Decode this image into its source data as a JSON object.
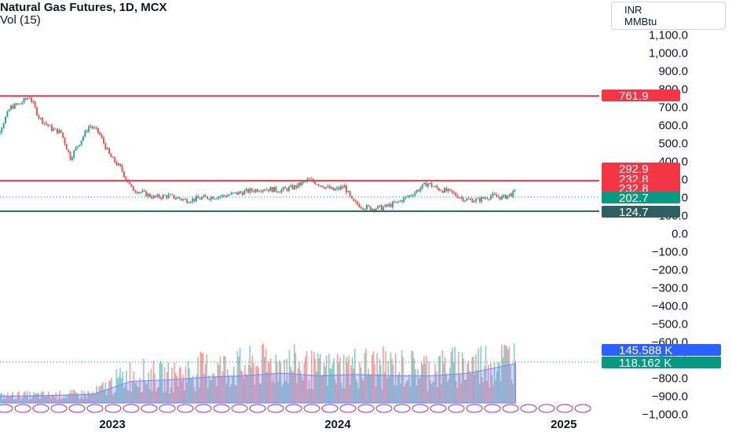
{
  "legend": {
    "title": "Natural Gas Futures, 1D, MCX",
    "indicator": "Vol (15)"
  },
  "units": {
    "currency": "INR",
    "unit": "MMBtu"
  },
  "colors": {
    "up": "#26a69a",
    "down": "#ef5350",
    "level_red": "#f23645",
    "level_dark": "#2f5f61",
    "price_teal": "#089981",
    "vol_blue": "#2962ff",
    "vol_ma": "#7b8ff5",
    "axis_text": "#131722",
    "grid": "#f0f3fa"
  },
  "chart_data": {
    "type": "candlestick",
    "title": "Natural Gas Futures, 1D, MCX",
    "xlabel": "",
    "ylabel": "",
    "ylim": [
      -1000,
      1150
    ],
    "yticks": [
      1100,
      1000,
      900,
      800,
      700,
      600,
      500,
      400,
      300,
      200,
      100,
      0,
      -100,
      -200,
      -300,
      -400,
      -500,
      -600,
      -700,
      -800,
      -900,
      -1000
    ],
    "ytick_labels": [
      "1,100.0",
      "1,000.0",
      "900.0",
      "800.0",
      "700.0",
      "600.0",
      "500.0",
      "400.0",
      "300.0",
      "200.0",
      "100.0",
      "0.0",
      "−100.0",
      "−200.0",
      "−300.0",
      "−400.0",
      "−500.0",
      "−600.0",
      "−700.0",
      "−800.0",
      "−900.0",
      "−1,000.0"
    ],
    "xticks": [
      "2023",
      "2024",
      "2025"
    ],
    "xtick_dates": [
      "2023-01-01",
      "2024-01-01",
      "2025-01-01"
    ],
    "xrange_dates": [
      "2022-06-12",
      "2025-04-01"
    ],
    "price_series": {
      "name": "Natural Gas Futures",
      "dates": [
        "2022-06-12",
        "2022-07-01",
        "2022-07-20",
        "2022-08-05",
        "2022-08-20",
        "2022-09-05",
        "2022-09-25",
        "2022-10-10",
        "2022-10-25",
        "2022-11-10",
        "2022-11-25",
        "2022-12-10",
        "2022-12-28",
        "2023-01-15",
        "2023-02-01",
        "2023-02-20",
        "2023-03-10",
        "2023-04-01",
        "2023-05-01",
        "2023-06-01",
        "2023-07-01",
        "2023-08-01",
        "2023-09-01",
        "2023-10-01",
        "2023-10-25",
        "2023-11-15",
        "2023-12-05",
        "2023-12-25",
        "2024-01-12",
        "2024-01-25",
        "2024-02-10",
        "2024-02-25",
        "2024-03-15",
        "2024-04-05",
        "2024-05-01",
        "2024-05-25",
        "2024-06-10",
        "2024-07-01",
        "2024-07-25",
        "2024-08-15",
        "2024-09-05",
        "2024-09-25",
        "2024-10-15"
      ],
      "close": [
        430,
        560,
        700,
        720,
        760,
        640,
        580,
        560,
        420,
        510,
        600,
        560,
        430,
        360,
        250,
        225,
        200,
        210,
        185,
        200,
        210,
        230,
        250,
        240,
        260,
        300,
        270,
        240,
        260,
        175,
        150,
        140,
        145,
        170,
        220,
        280,
        250,
        230,
        190,
        185,
        210,
        200,
        230
      ]
    },
    "volume_series": {
      "name": "Vol (15)",
      "axis_max": 1200,
      "dates": [
        "2022-06-12",
        "2022-08-01",
        "2022-10-01",
        "2022-12-01",
        "2023-02-01",
        "2023-04-01",
        "2023-06-01",
        "2023-08-01",
        "2023-10-01",
        "2023-12-01",
        "2024-02-01",
        "2024-04-01",
        "2024-06-01",
        "2024-08-01",
        "2024-10-15"
      ],
      "values": [
        20,
        25,
        25,
        30,
        95,
        85,
        110,
        115,
        130,
        105,
        120,
        115,
        110,
        125,
        145
      ],
      "ma_values": [
        25,
        25,
        28,
        32,
        80,
        85,
        95,
        100,
        110,
        100,
        105,
        100,
        100,
        110,
        145
      ]
    },
    "levels": [
      {
        "value": 761.9,
        "label": "761.9",
        "color": "#f23645"
      },
      {
        "value": 292.9,
        "label": "292.9",
        "color": "#f23645"
      },
      {
        "value": 124.7,
        "label": "124.7",
        "color": "#2f5f61"
      }
    ],
    "last_price": {
      "value": 202.7,
      "label": "202.7"
    },
    "price_labels": [
      {
        "label": "292.9",
        "color": "#f23645"
      },
      {
        "label": "232.8",
        "color": "#f23645"
      },
      {
        "label": "232.8",
        "color": "#f23645"
      },
      {
        "label": "202.7",
        "color": "#089981"
      },
      {
        "label": "124.7",
        "color": "#2f5f61"
      },
      {
        "label": "145.588 K",
        "color": "#2962ff"
      },
      {
        "label": "118.162 K",
        "color": "#089981"
      }
    ]
  }
}
